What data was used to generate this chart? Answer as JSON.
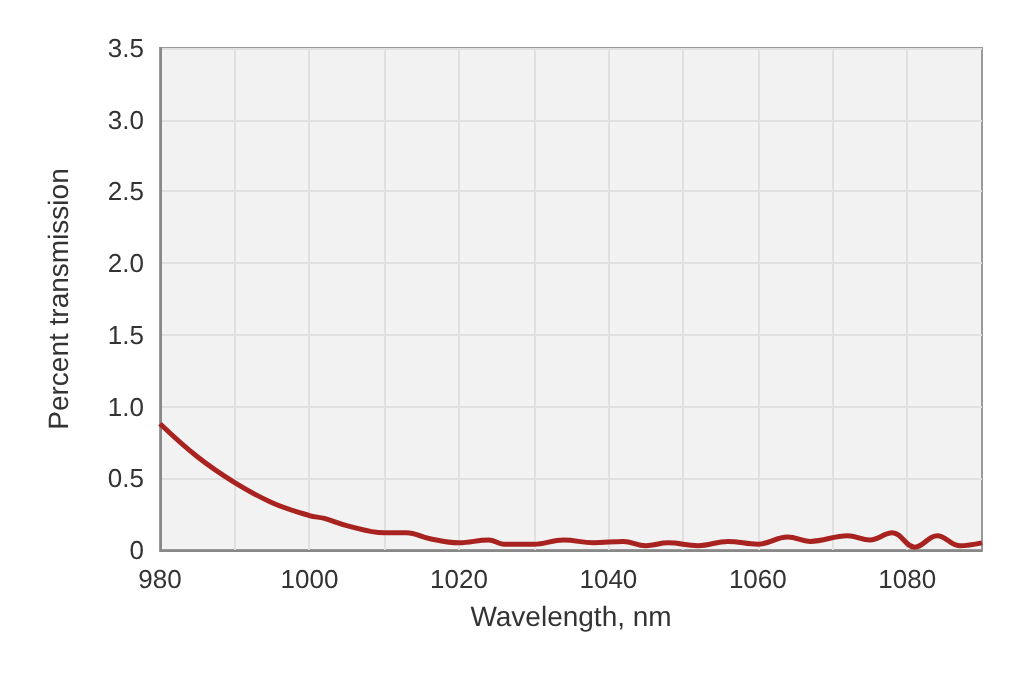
{
  "chart_data": {
    "type": "line",
    "xlabel": "Wavelength, nm",
    "ylabel": "Percent transmission",
    "x": [
      980,
      985,
      990,
      995,
      1000,
      1002,
      1005,
      1010,
      1013,
      1016,
      1020,
      1024,
      1026,
      1030,
      1034,
      1038,
      1042,
      1045,
      1048,
      1052,
      1056,
      1060,
      1064,
      1067,
      1072,
      1075,
      1078,
      1081,
      1084,
      1087,
      1090
    ],
    "series": [
      {
        "color": "#a8231f",
        "values": [
          0.88,
          0.65,
          0.47,
          0.33,
          0.24,
          0.22,
          0.17,
          0.12,
          0.12,
          0.08,
          0.05,
          0.07,
          0.04,
          0.04,
          0.07,
          0.05,
          0.06,
          0.03,
          0.05,
          0.03,
          0.06,
          0.04,
          0.09,
          0.06,
          0.1,
          0.07,
          0.12,
          0.02,
          0.1,
          0.03,
          0.05
        ]
      }
    ],
    "xlim": [
      980,
      1090
    ],
    "xticks": [
      980,
      {
        "value": 990,
        "label": null
      },
      1000,
      {
        "value": 1010,
        "label": null
      },
      1020,
      {
        "value": 1030,
        "label": null
      },
      1040,
      {
        "value": 1050,
        "label": null
      },
      1060,
      {
        "value": 1070,
        "label": null
      },
      1080
    ],
    "ylim": [
      0,
      3.5
    ],
    "yticks": [
      {
        "value": 0,
        "label": "0"
      },
      0.5,
      {
        "value": 1,
        "label": "1.0"
      },
      1.5,
      {
        "value": 2,
        "label": "2.0"
      },
      2.5,
      {
        "value": 3,
        "label": "3.0"
      },
      3.5
    ],
    "grid": true,
    "marker": "none",
    "line_style": "solid"
  }
}
